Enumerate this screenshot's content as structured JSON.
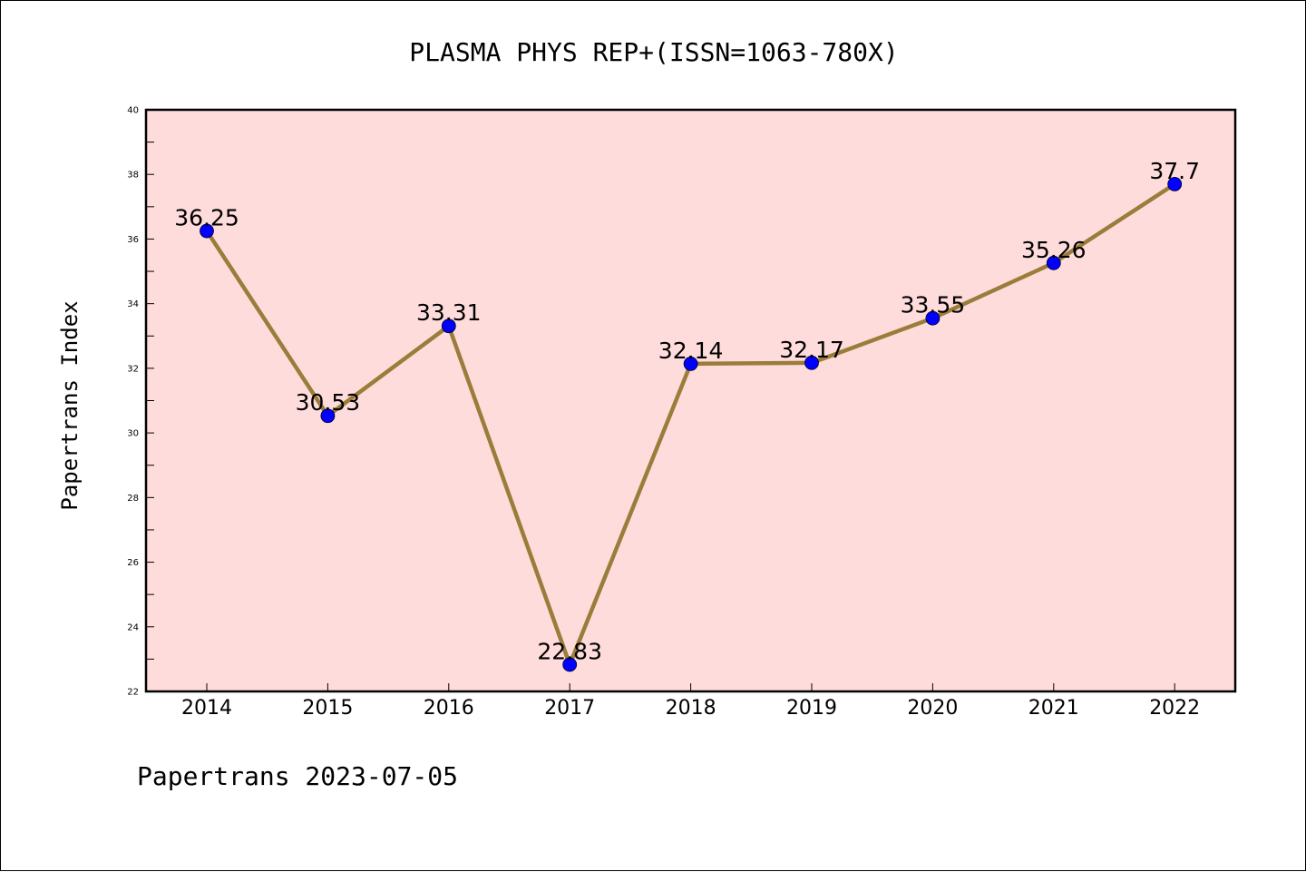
{
  "chart_data": {
    "type": "line",
    "title": "PLASMA PHYS REP+(ISSN=1063-780X)",
    "ylabel": "Papertrans Index",
    "footer": "Papertrans 2023-07-05",
    "x": [
      "2014",
      "2015",
      "2016",
      "2017",
      "2018",
      "2019",
      "2020",
      "2021",
      "2022"
    ],
    "series": [
      {
        "values": [
          36.25,
          30.53,
          33.31,
          22.83,
          32.14,
          32.17,
          33.55,
          35.26,
          37.7
        ],
        "labels": [
          "36.25",
          "30.53",
          "33.31",
          "22.83",
          "32.14",
          "32.17",
          "33.55",
          "35.26",
          "37.7"
        ]
      }
    ],
    "ylim": [
      22,
      40
    ],
    "yticks": [
      "22",
      "24",
      "26",
      "28",
      "30",
      "32",
      "34",
      "36",
      "38",
      "40"
    ],
    "colors": {
      "plot_background": "#ffdcdc",
      "line": "#9a7d3a",
      "marker": "#0000ff"
    },
    "grid": false,
    "legend": "none"
  }
}
